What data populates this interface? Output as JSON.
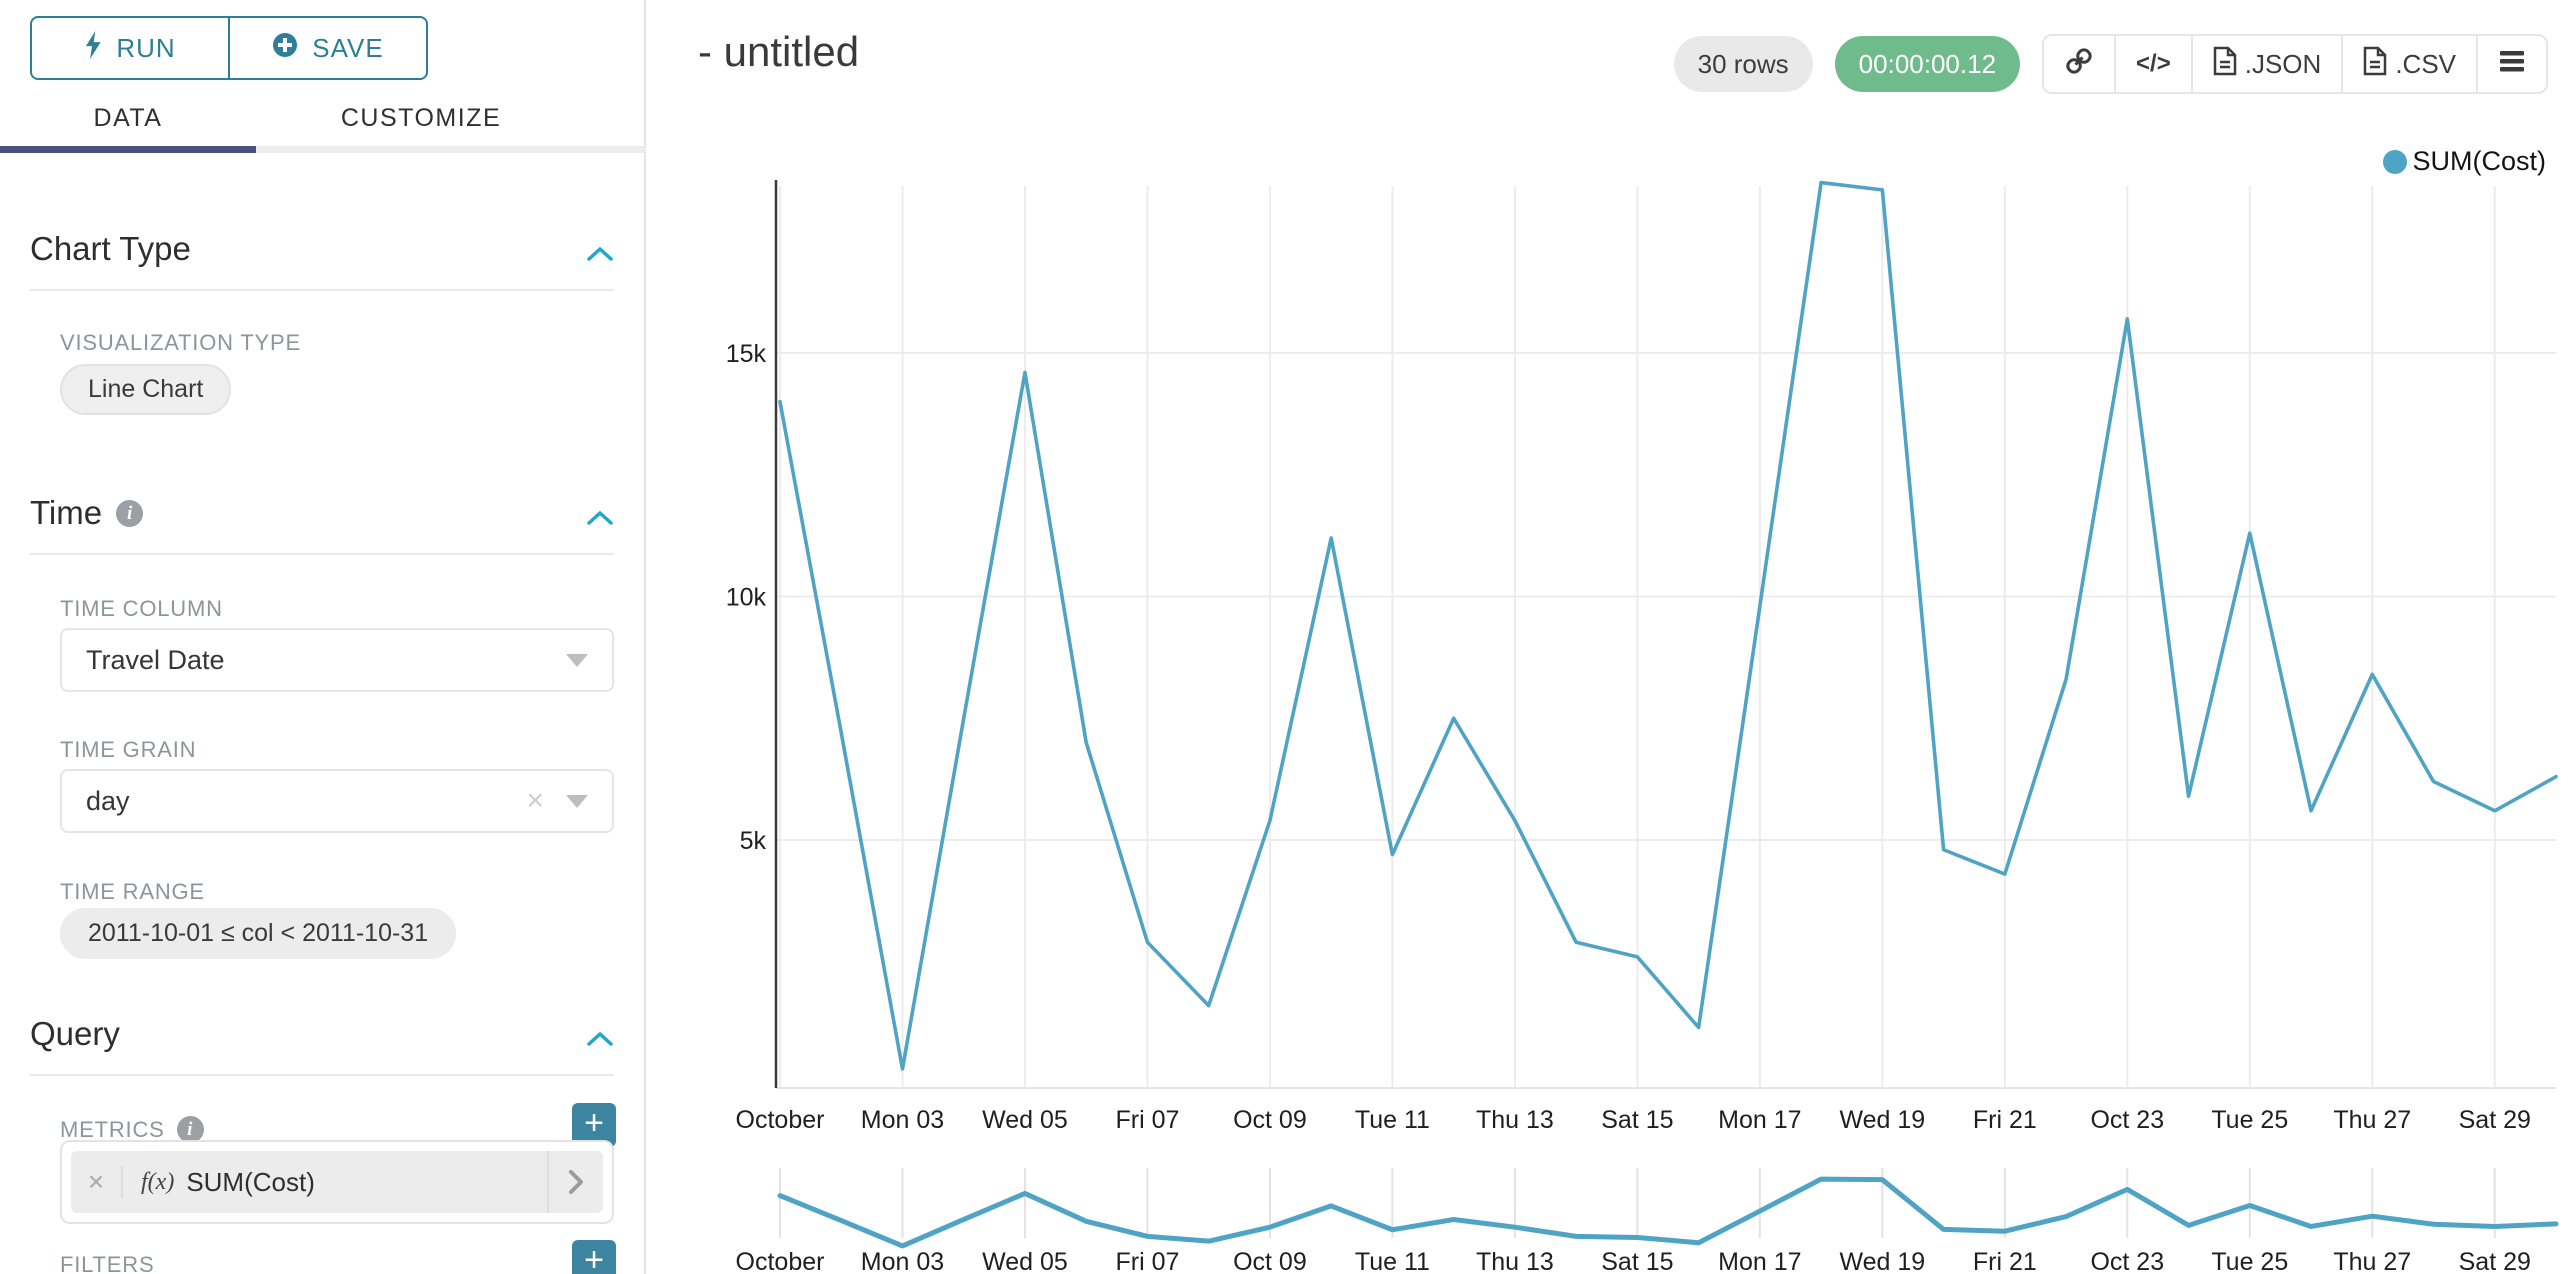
{
  "colors": {
    "line": "#4fa3c4",
    "accent_teal": "#2e7e97",
    "tab_indicator": "#4a5180",
    "timer_green": "#6fbb8c",
    "plus_button": "#3d84a0",
    "chevron_blue": "#20a7c9",
    "gridline": "#ececec",
    "axis_line": "#3a3a3a"
  },
  "sidebar": {
    "run_label": "RUN",
    "save_label": "SAVE",
    "tabs": [
      {
        "label": "DATA",
        "active": true
      },
      {
        "label": "CUSTOMIZE",
        "active": false
      }
    ],
    "chart_type": {
      "title": "Chart Type",
      "viz_type_label": "VISUALIZATION TYPE",
      "viz_type_value": "Line Chart"
    },
    "time": {
      "title": "Time",
      "time_column_label": "TIME COLUMN",
      "time_column_value": "Travel Date",
      "time_grain_label": "TIME GRAIN",
      "time_grain_value": "day",
      "time_range_label": "TIME RANGE",
      "time_range_value": "2011-10-01 ≤ col < 2011-10-31"
    },
    "query": {
      "title": "Query",
      "metrics_label": "METRICS",
      "metric_fx": "f(x)",
      "metric_value": "SUM(Cost)",
      "filters_label": "FILTERS"
    }
  },
  "header": {
    "title": "- untitled",
    "rows_badge": "30 rows",
    "timer_badge": "00:00:00.12",
    "code_icon_text": "</>",
    "export_json_label": ".JSON",
    "export_csv_label": ".CSV"
  },
  "legend": {
    "label": "SUM(Cost)"
  },
  "chart_data": {
    "type": "line",
    "title": "- untitled",
    "xlabel": "",
    "ylabel": "",
    "grid": true,
    "legend_position": "top-right",
    "ylim": [
      0,
      18700
    ],
    "y_tick_labels": [
      "5k",
      "10k",
      "15k"
    ],
    "y_tick_values": [
      5000,
      10000,
      15000
    ],
    "x_tick_labels": [
      "October",
      "Mon 03",
      "Wed 05",
      "Fri 07",
      "Oct 09",
      "Tue 11",
      "Thu 13",
      "Sat 15",
      "Mon 17",
      "Wed 19",
      "Fri 21",
      "Oct 23",
      "Tue 25",
      "Thu 27",
      "Sat 29"
    ],
    "x_tick_day_indices": [
      0,
      2,
      4,
      6,
      8,
      10,
      12,
      14,
      16,
      18,
      20,
      22,
      24,
      26,
      28
    ],
    "dates": [
      "2011-10-01",
      "2011-10-02",
      "2011-10-03",
      "2011-10-04",
      "2011-10-05",
      "2011-10-06",
      "2011-10-07",
      "2011-10-08",
      "2011-10-09",
      "2011-10-10",
      "2011-10-11",
      "2011-10-12",
      "2011-10-13",
      "2011-10-14",
      "2011-10-15",
      "2011-10-16",
      "2011-10-17",
      "2011-10-18",
      "2011-10-19",
      "2011-10-20",
      "2011-10-21",
      "2011-10-22",
      "2011-10-23",
      "2011-10-24",
      "2011-10-25",
      "2011-10-26",
      "2011-10-27",
      "2011-10-28",
      "2011-10-29",
      "2011-10-30"
    ],
    "series": [
      {
        "name": "SUM(Cost)",
        "color": "#4fa3c4",
        "values": [
          14000,
          7200,
          300,
          7500,
          14600,
          7000,
          2900,
          1600,
          5400,
          11200,
          4700,
          7500,
          5400,
          2900,
          2600,
          1150,
          9800,
          18500,
          18350,
          4800,
          4300,
          8300,
          15700,
          5900,
          11300,
          5600,
          8400,
          6200,
          5600,
          6300
        ]
      }
    ],
    "context_chart": {
      "present": true,
      "same_series": true
    }
  }
}
